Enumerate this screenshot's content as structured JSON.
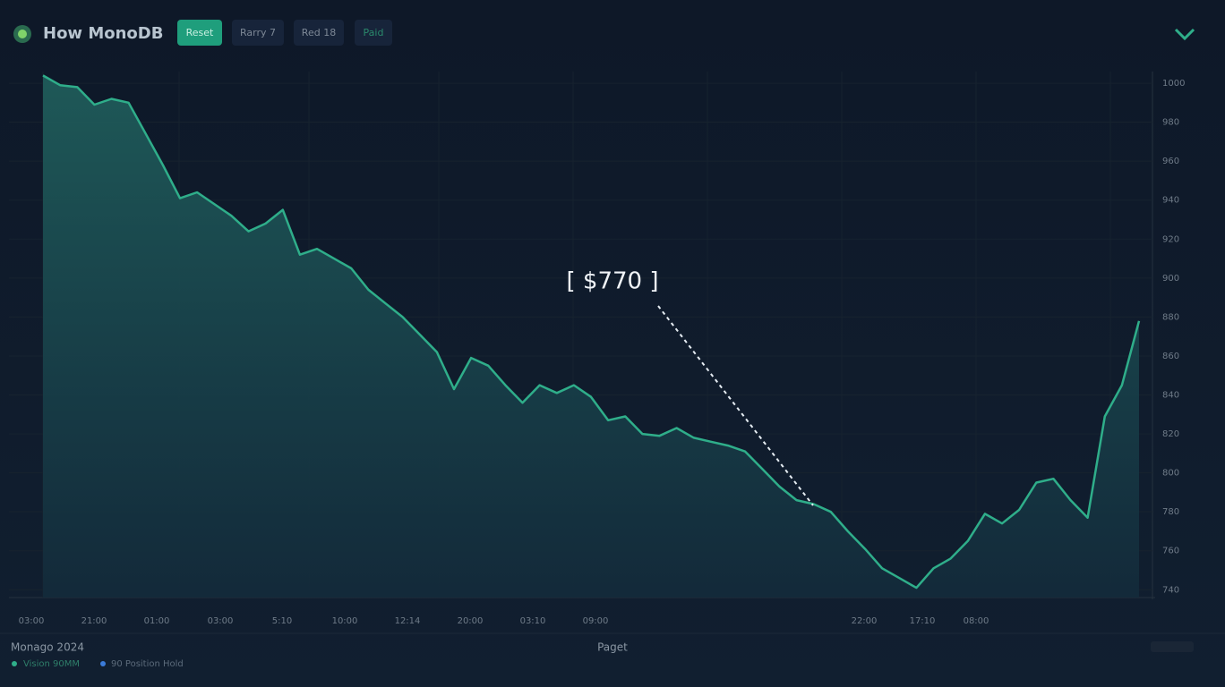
{
  "header": {
    "logo": "How MonoDB",
    "buttons": [
      "Reset",
      "Rarry 7",
      "Red 18",
      "Paid"
    ]
  },
  "chart_data": {
    "type": "area",
    "color": "#2fae8a",
    "values": [
      1004,
      999,
      998,
      989,
      992,
      990,
      974,
      958,
      941,
      944,
      938,
      932,
      924,
      928,
      935,
      912,
      915,
      910,
      905,
      894,
      887,
      880,
      871,
      862,
      843,
      859,
      855,
      845,
      836,
      845,
      841,
      845,
      839,
      827,
      829,
      820,
      819,
      823,
      818,
      816,
      814,
      811,
      802,
      793,
      786,
      784,
      780,
      770,
      761,
      751,
      746,
      741,
      751,
      756,
      765,
      779,
      774,
      781,
      795,
      797,
      786,
      777,
      829,
      845,
      878
    ],
    "ylim": [
      736,
      1006
    ],
    "yticks": [
      1000,
      980,
      960,
      940,
      920,
      900,
      880,
      860,
      840,
      820,
      800,
      780,
      760,
      740
    ],
    "grid": true,
    "x_labels": [
      "03:00",
      "21:00",
      "01:00",
      "03:00",
      "5:10",
      "10:00",
      "12:14",
      "20:00",
      "03:10",
      "09:00",
      "22:00",
      "17:10",
      "08:00"
    ],
    "annotation": "[ $770 ]"
  },
  "footer": {
    "title": "Monago 2024",
    "legend": [
      "Vision 90MM",
      "90 Position Hold"
    ],
    "center": "Paget"
  }
}
